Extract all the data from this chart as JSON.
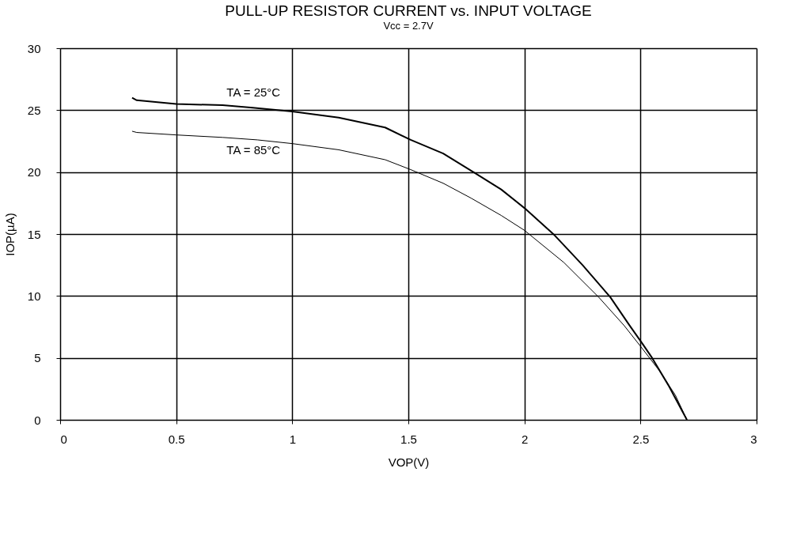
{
  "chart_data": {
    "type": "line",
    "title": "PULL-UP RESISTOR CURRENT vs. INPUT VOLTAGE",
    "subtitle": "Vcc = 2.7V",
    "xlabel": "VOP(V)",
    "ylabel": "IOP(µA)",
    "xlim": [
      0,
      3
    ],
    "xticks": [
      0,
      0.5,
      1,
      1.5,
      2,
      2.5,
      3
    ],
    "ylim": [
      0,
      30
    ],
    "yticks": [
      0,
      5,
      10,
      15,
      20,
      25,
      30
    ],
    "grid": true,
    "marker": "none",
    "line_style": "solid",
    "series": [
      {
        "name": "TA = 25°C",
        "color": "#000000",
        "x": [
          0.31,
          0.33,
          0.5,
          0.7,
          0.83,
          1.0,
          1.2,
          1.4,
          1.51,
          1.65,
          1.78,
          1.9,
          2.0,
          2.13,
          2.25,
          2.37,
          2.45,
          2.51,
          2.55,
          2.62,
          2.7
        ],
        "values": [
          26.0,
          25.8,
          25.5,
          25.4,
          25.2,
          24.9,
          24.4,
          23.6,
          22.6,
          21.5,
          20.0,
          18.6,
          17.1,
          14.9,
          12.5,
          9.9,
          7.7,
          6.1,
          5.0,
          2.8,
          0
        ]
      },
      {
        "name": "TA = 85°C",
        "color": "#000000",
        "x": [
          0.31,
          0.33,
          0.5,
          0.7,
          0.85,
          1.0,
          1.2,
          1.4,
          1.51,
          1.65,
          1.77,
          1.9,
          2.0,
          2.17,
          2.32,
          2.43,
          2.51,
          2.58,
          2.65,
          2.7
        ],
        "values": [
          23.3,
          23.2,
          23.0,
          22.8,
          22.6,
          22.3,
          21.8,
          21.0,
          20.2,
          19.1,
          17.9,
          16.5,
          15.3,
          12.7,
          9.9,
          7.6,
          5.7,
          4.0,
          2.0,
          0
        ]
      }
    ]
  }
}
